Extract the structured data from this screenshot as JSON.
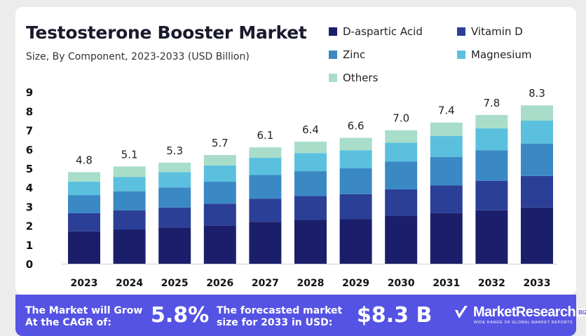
{
  "header": {
    "title": "Testosterone Booster Market",
    "subtitle": "Size, By Component, 2023-2033 (USD Billion)"
  },
  "legend": [
    {
      "name": "D-aspartic Acid",
      "color": "#1b1f6b"
    },
    {
      "name": "Vitamin D",
      "color": "#2b3f97"
    },
    {
      "name": "Zinc",
      "color": "#3a88c4"
    },
    {
      "name": "Magnesium",
      "color": "#5bc0de"
    },
    {
      "name": "Others",
      "color": "#a8ddc9"
    }
  ],
  "chart_data": {
    "type": "bar",
    "stacked": true,
    "categories": [
      "2023",
      "2024",
      "2025",
      "2026",
      "2027",
      "2028",
      "2029",
      "2030",
      "2031",
      "2032",
      "2033"
    ],
    "totals": [
      4.8,
      5.1,
      5.3,
      5.7,
      6.1,
      6.4,
      6.6,
      7.0,
      7.4,
      7.8,
      8.3
    ],
    "total_labels": [
      "4.8",
      "5.1",
      "5.3",
      "5.7",
      "6.1",
      "6.4",
      "6.6",
      "7.0",
      "7.4",
      "7.8",
      "8.3"
    ],
    "series": [
      {
        "name": "D-aspartic Acid",
        "color": "#1b1f6b",
        "values": [
          1.7,
          1.8,
          1.9,
          2.0,
          2.2,
          2.3,
          2.35,
          2.5,
          2.65,
          2.8,
          2.95
        ]
      },
      {
        "name": "Vitamin D",
        "color": "#2b3f97",
        "values": [
          0.95,
          1.0,
          1.05,
          1.15,
          1.2,
          1.25,
          1.3,
          1.4,
          1.45,
          1.55,
          1.65
        ]
      },
      {
        "name": "Zinc",
        "color": "#3a88c4",
        "values": [
          0.95,
          1.0,
          1.05,
          1.15,
          1.25,
          1.3,
          1.35,
          1.45,
          1.5,
          1.6,
          1.7
        ]
      },
      {
        "name": "Magnesium",
        "color": "#5bc0de",
        "values": [
          0.7,
          0.75,
          0.8,
          0.85,
          0.9,
          0.95,
          0.95,
          1.0,
          1.1,
          1.15,
          1.2
        ]
      },
      {
        "name": "Others",
        "color": "#a8ddc9",
        "values": [
          0.5,
          0.55,
          0.5,
          0.55,
          0.55,
          0.6,
          0.65,
          0.65,
          0.7,
          0.7,
          0.8
        ]
      }
    ],
    "yticks": [
      "0",
      "1",
      "2",
      "3",
      "4",
      "5",
      "6",
      "7",
      "8",
      "9"
    ],
    "ylim": [
      0,
      9
    ],
    "xlabel": "",
    "ylabel": "",
    "grid": false,
    "legend_position": "top-right"
  },
  "footer": {
    "cagr_text_line1": "The Market will Grow",
    "cagr_text_line2": "At the CAGR of:",
    "cagr_value": "5.8%",
    "forecast_text_line1": "The forecasted market",
    "forecast_text_line2": "size for 2033 in USD:",
    "forecast_value": "$8.3 B",
    "brand_name": "MarketResearch",
    "brand_suffix": "BIZ",
    "brand_tagline": "WIDE RANGE OF GLOBAL MARKET REPORTS",
    "background_color": "#5553e3"
  }
}
